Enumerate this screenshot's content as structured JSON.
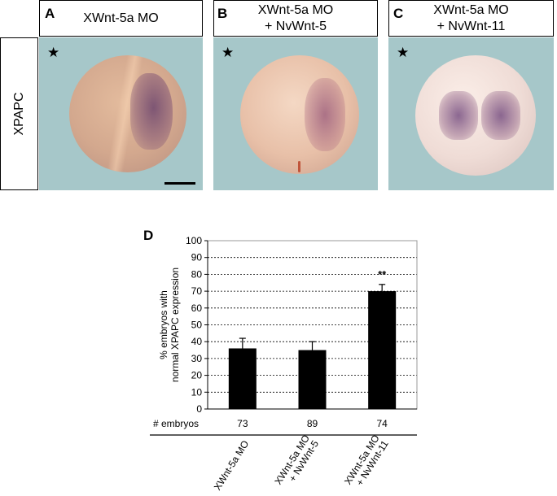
{
  "panels": [
    {
      "letter": "A",
      "title_line1": "XWnt-5a MO",
      "title_line2": ""
    },
    {
      "letter": "B",
      "title_line1": "XWnt-5a MO",
      "title_line2": "+ NvWnt-5"
    },
    {
      "letter": "C",
      "title_line1": "XWnt-5a MO",
      "title_line2": "+ NvWnt-11"
    }
  ],
  "row_label": "XPAPC",
  "star_symbol": "★",
  "chart_letter": "D",
  "colors": {
    "photo_background": "#a6c7c9",
    "bar": "#000000"
  },
  "chart_data": {
    "type": "bar",
    "categories": [
      "XWnt-5a MO",
      "XWnt-5a MO + NvWnt-5",
      "XWnt-5a MO + NvWnt-11"
    ],
    "values": [
      36,
      35,
      70
    ],
    "errors": [
      6,
      5,
      4
    ],
    "ylabel_line1": "% embryos with",
    "ylabel_line2": "normal XPAPC expression",
    "ylim": [
      0,
      100
    ],
    "yticks": [
      0,
      10,
      20,
      30,
      40,
      50,
      60,
      70,
      80,
      90,
      100
    ],
    "grid": true,
    "annotation": "**",
    "annotation_category_index": 2,
    "counts_label": "# embryos",
    "counts": [
      "73",
      "89",
      "74"
    ]
  }
}
